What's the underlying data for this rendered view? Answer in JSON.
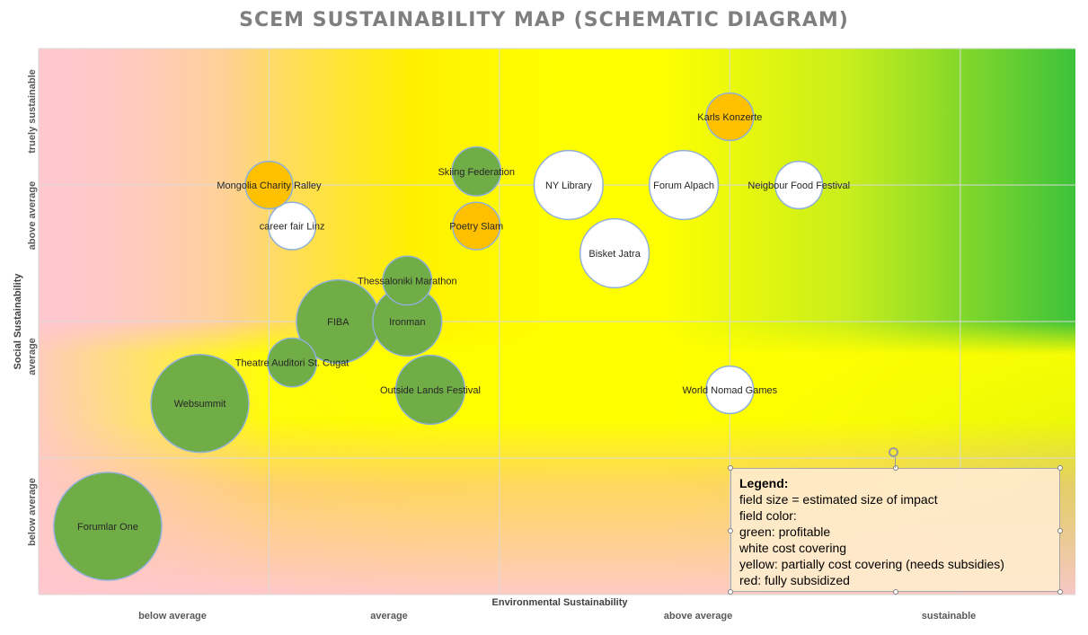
{
  "title": "SCEM SUSTAINABILITY MAP (SCHEMATIC DIAGRAM)",
  "chart_data": {
    "type": "bubble",
    "title": "SCEM SUSTAINABILITY MAP (SCHEMATIC DIAGRAM)",
    "xlabel": "Environmental Sustainability",
    "ylabel": "Social Sustainability",
    "x_ticks": [
      "below average",
      "average",
      "above average",
      "sustainable"
    ],
    "y_ticks": [
      "below average",
      "average",
      "above average",
      "truely sustainable"
    ],
    "xlim": [
      0,
      4.5
    ],
    "ylim": [
      0,
      4
    ],
    "grid": true,
    "colors": {
      "green": "#70ad47",
      "white": "#ffffff",
      "yellow": "#ffc000",
      "outline": "#8fb0d8"
    },
    "points": [
      {
        "label": "Forumlar One",
        "x": 0.3,
        "y": 0.5,
        "size": 75,
        "color": "green"
      },
      {
        "label": "Websummit",
        "x": 0.7,
        "y": 1.4,
        "size": 68,
        "color": "green"
      },
      {
        "label": "FIBA",
        "x": 1.3,
        "y": 2.0,
        "size": 58,
        "color": "green"
      },
      {
        "label": "Ironman",
        "x": 1.6,
        "y": 2.0,
        "size": 48,
        "color": "green"
      },
      {
        "label": "Outside Lands Festival",
        "x": 1.7,
        "y": 1.5,
        "size": 48,
        "color": "green"
      },
      {
        "label": "Theatre Auditori St. Cugat",
        "x": 1.1,
        "y": 1.7,
        "size": 34,
        "color": "green"
      },
      {
        "label": "Thessaloniki Marathon",
        "x": 1.6,
        "y": 2.3,
        "size": 34,
        "color": "green"
      },
      {
        "label": "Skiing Federation",
        "x": 1.9,
        "y": 3.1,
        "size": 34,
        "color": "green"
      },
      {
        "label": "career fair Linz",
        "x": 1.1,
        "y": 2.7,
        "size": 33,
        "color": "white"
      },
      {
        "label": "Mongolia Charity Ralley",
        "x": 1.0,
        "y": 3.0,
        "size": 33,
        "color": "yellow"
      },
      {
        "label": "Poetry Slam",
        "x": 1.9,
        "y": 2.7,
        "size": 33,
        "color": "yellow"
      },
      {
        "label": "NY Library",
        "x": 2.3,
        "y": 3.0,
        "size": 48,
        "color": "white"
      },
      {
        "label": "Bisket Jatra",
        "x": 2.5,
        "y": 2.5,
        "size": 48,
        "color": "white"
      },
      {
        "label": "Forum Alpach",
        "x": 2.8,
        "y": 3.0,
        "size": 48,
        "color": "white"
      },
      {
        "label": "Karls Konzerte",
        "x": 3.0,
        "y": 3.5,
        "size": 33,
        "color": "yellow"
      },
      {
        "label": "Neigbour Food Festival",
        "x": 3.3,
        "y": 3.0,
        "size": 33,
        "color": "white"
      },
      {
        "label": "World Nomad Games",
        "x": 3.0,
        "y": 1.5,
        "size": 33,
        "color": "white"
      }
    ]
  },
  "legend": {
    "heading": "Legend:",
    "lines": [
      "field size = estimated size of impact",
      "field color:",
      "green: profitable",
      "white cost covering",
      "yellow: partially cost covering (needs subsidies)",
      "red: fully subsidized"
    ]
  }
}
